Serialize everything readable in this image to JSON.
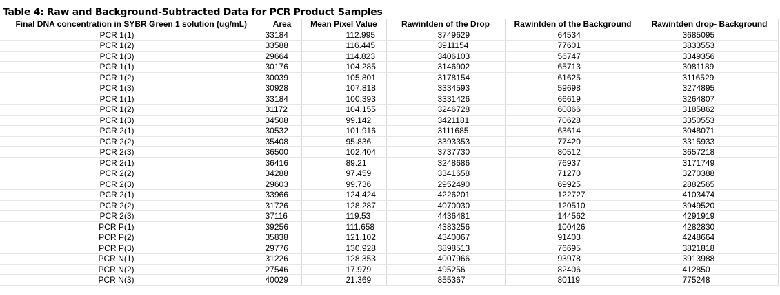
{
  "table": {
    "title": "Table 4: Raw and Background-Subtracted Data for PCR Product Samples",
    "headers": [
      "Final DNA concentration in SYBR Green 1 solution (ug/mL)",
      "Area",
      "Mean Pixel Value",
      "Rawintden of the Drop",
      "Rawintden of the Background",
      "Rawintden drop- Background"
    ],
    "rows": [
      [
        "PCR 1(1)",
        "33184",
        "112.995",
        "3749629",
        "64534",
        "3685095"
      ],
      [
        "PCR 1(2)",
        "33588",
        "116.445",
        "3911154",
        "77601",
        "3833553"
      ],
      [
        "PCR 1(3)",
        "29664",
        "114.823",
        "3406103",
        "56747",
        "3349356"
      ],
      [
        "PCR 1(1)",
        "30176",
        "104.285",
        "3146902",
        "65713",
        "3081189"
      ],
      [
        "PCR 1(2)",
        "30039",
        "105.801",
        "3178154",
        "61625",
        "3116529"
      ],
      [
        "PCR 1(3)",
        "30928",
        "107.818",
        "3334593",
        "59698",
        "3274895"
      ],
      [
        "PCR 1(1)",
        "33184",
        "100.393",
        "3331426",
        "66619",
        "3264807"
      ],
      [
        "PCR 1(2)",
        "31172",
        "104.155",
        "3246728",
        "60866",
        "3185862"
      ],
      [
        "PCR 1(3)",
        "34508",
        "99.142",
        "3421181",
        "70628",
        "3350553"
      ],
      [
        "PCR 2(1)",
        "30532",
        "101.916",
        "3111685",
        "63614",
        "3048071"
      ],
      [
        "PCR 2(2)",
        "35408",
        "95.836",
        "3393353",
        "77420",
        "3315933"
      ],
      [
        "PCR 2(3)",
        "36500",
        "102.404",
        "3737730",
        "80512",
        "3657218"
      ],
      [
        "PCR 2(1)",
        "36416",
        "89.21",
        "3248686",
        "76937",
        "3171749"
      ],
      [
        "PCR 2(2)",
        "34288",
        "97.459",
        "3341658",
        "71270",
        "3270388"
      ],
      [
        "PCR 2(3)",
        "29603",
        "99.736",
        "2952490",
        "69925",
        "2882565"
      ],
      [
        "PCR 2(1)",
        "33966",
        "124.424",
        "4226201",
        "122727",
        "4103474"
      ],
      [
        "PCR 2(2)",
        "31726",
        "128.287",
        "4070030",
        "120510",
        "3949520"
      ],
      [
        "PCR 2(3)",
        "37116",
        "119.53",
        "4436481",
        "144562",
        "4291919"
      ],
      [
        "PCR P(1)",
        "39256",
        "111.658",
        "4383256",
        "100426",
        "4282830"
      ],
      [
        "PCR P(2)",
        "35838",
        "121.102",
        "4340067",
        "91403",
        "4248664"
      ],
      [
        "PCR P(3)",
        "29776",
        "130.928",
        "3898513",
        "76695",
        "3821818"
      ],
      [
        "PCR N(1)",
        "31226",
        "128.353",
        "4007966",
        "93978",
        "3913988"
      ],
      [
        "PCR N(2)",
        "27546",
        "17.979",
        "495256",
        "82406",
        "412850"
      ],
      [
        "PCR N(3)",
        "40029",
        "21.369",
        "855367",
        "80119",
        "775248"
      ]
    ]
  }
}
